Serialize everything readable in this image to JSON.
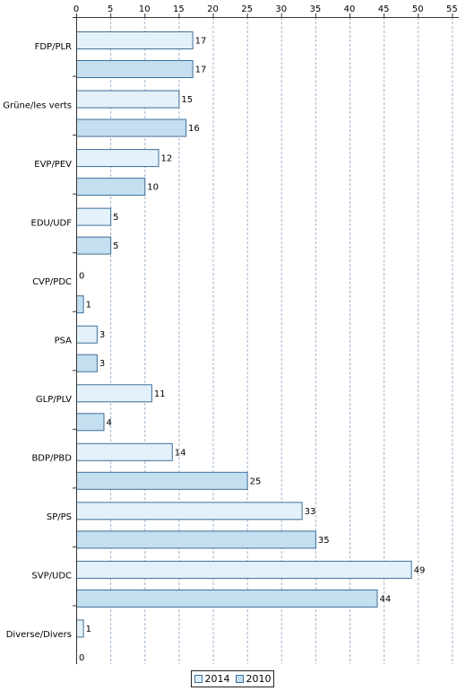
{
  "chart_data": {
    "type": "bar",
    "orientation": "horizontal",
    "categories": [
      "FDP/PLR",
      "Grüne/les verts",
      "EVP/PEV",
      "EDU/UDF",
      "CVP/PDC",
      "PSA",
      "GLP/PLV",
      "BDP/PBD",
      "SP/PS",
      "SVP/UDC",
      "Diverse/Divers"
    ],
    "series": [
      {
        "name": "2014",
        "values": [
          17,
          15,
          12,
          5,
          0,
          3,
          11,
          14,
          33,
          49,
          1
        ],
        "color": "#e3f1fa"
      },
      {
        "name": "2010",
        "values": [
          17,
          16,
          10,
          5,
          1,
          3,
          4,
          25,
          35,
          44,
          0
        ],
        "color": "#c3dff0"
      }
    ],
    "xlim": [
      0,
      56
    ],
    "xticks": [
      0,
      5,
      10,
      15,
      20,
      25,
      30,
      35,
      40,
      45,
      50,
      55
    ],
    "axis_position": "top",
    "grid": true,
    "legend_position": "bottom-center",
    "bar_stroke": "#3f6f99",
    "grid_color": "#9fb5cc"
  }
}
